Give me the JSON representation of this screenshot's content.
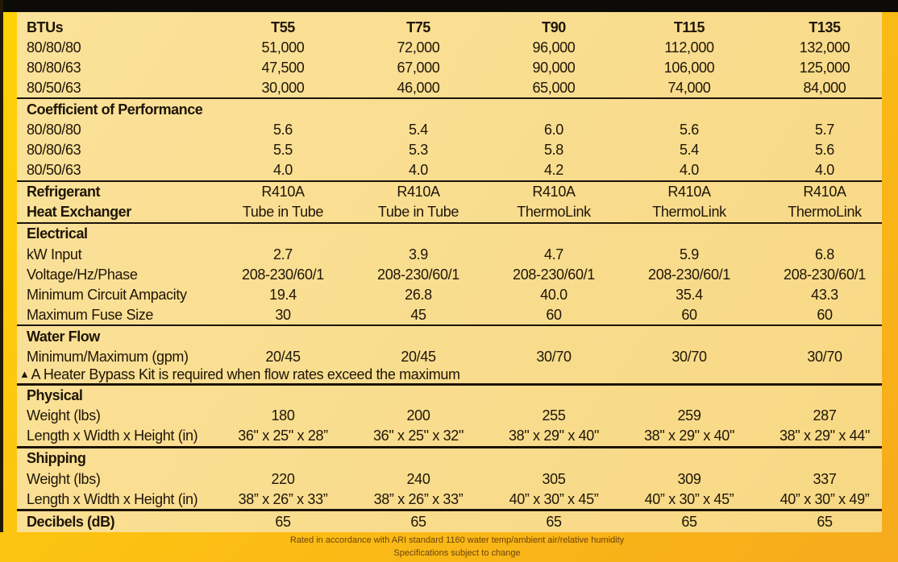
{
  "columns": [
    "T55",
    "T75",
    "T90",
    "T115",
    "T135"
  ],
  "table": {
    "rows": [
      {
        "type": "header",
        "label": "BTUs",
        "values": [
          "T55",
          "T75",
          "T90",
          "T115",
          "T135"
        ]
      },
      {
        "type": "data",
        "label": "80/80/80",
        "values": [
          "51,000",
          "72,000",
          "96,000",
          "112,000",
          "132,000"
        ]
      },
      {
        "type": "data",
        "label": "80/80/63",
        "values": [
          "47,500",
          "67,000",
          "90,000",
          "106,000",
          "125,000"
        ]
      },
      {
        "type": "data",
        "label": "80/50/63",
        "values": [
          "30,000",
          "46,000",
          "65,000",
          "74,000",
          "84,000"
        ]
      },
      {
        "type": "divider",
        "weight": 2
      },
      {
        "type": "section",
        "label": "Coefficient of Performance"
      },
      {
        "type": "data",
        "label": "80/80/80",
        "values": [
          "5.6",
          "5.4",
          "6.0",
          "5.6",
          "5.7"
        ]
      },
      {
        "type": "data",
        "label": "80/80/63",
        "values": [
          "5.5",
          "5.3",
          "5.8",
          "5.4",
          "5.6"
        ]
      },
      {
        "type": "data",
        "label": "80/50/63",
        "values": [
          "4.0",
          "4.0",
          "4.2",
          "4.0",
          "4.0"
        ]
      },
      {
        "type": "divider",
        "weight": 2
      },
      {
        "type": "boldlabel",
        "label": "Refrigerant",
        "values": [
          "R410A",
          "R410A",
          "R410A",
          "R410A",
          "R410A"
        ]
      },
      {
        "type": "boldlabel",
        "label": "Heat Exchanger",
        "values": [
          "Tube in Tube",
          "Tube in Tube",
          "ThermoLink",
          "ThermoLink",
          "ThermoLink"
        ]
      },
      {
        "type": "divider",
        "weight": 2
      },
      {
        "type": "section",
        "label": "Electrical"
      },
      {
        "type": "data",
        "label": "kW Input",
        "values": [
          "2.7",
          "3.9",
          "4.7",
          "5.9",
          "6.8"
        ]
      },
      {
        "type": "data",
        "label": "Voltage/Hz/Phase",
        "values": [
          "208-230/60/1",
          "208-230/60/1",
          "208-230/60/1",
          "208-230/60/1",
          "208-230/60/1"
        ]
      },
      {
        "type": "data",
        "label": "Minimum Circuit Ampacity",
        "values": [
          "19.4",
          "26.8",
          "40.0",
          "35.4",
          "43.3"
        ]
      },
      {
        "type": "data",
        "label": "Maximum Fuse Size",
        "values": [
          "30",
          "45",
          "60",
          "60",
          "60"
        ]
      },
      {
        "type": "divider",
        "weight": 2
      },
      {
        "type": "section",
        "label": "Water Flow"
      },
      {
        "type": "data",
        "label": "Minimum/Maximum (gpm)",
        "values": [
          "20/45",
          "20/45",
          "30/70",
          "30/70",
          "30/70"
        ]
      },
      {
        "type": "note",
        "symbol": "▲",
        "text": "A Heater Bypass Kit is required when flow rates exceed the maximum"
      },
      {
        "type": "divider",
        "weight": 3
      },
      {
        "type": "section",
        "label": "Physical"
      },
      {
        "type": "data",
        "label": "Weight (lbs)",
        "values": [
          "180",
          "200",
          "255",
          "259",
          "287"
        ]
      },
      {
        "type": "data",
        "label": "Length x Width x Height (in)",
        "values": [
          "36\" x 25\" x 28”",
          "36\" x 25\" x 32\"",
          "38\" x 29\" x 40\"",
          "38\" x 29\" x 40\"",
          "38\" x 29\" x 44\""
        ]
      },
      {
        "type": "divider",
        "weight": 3
      },
      {
        "type": "section",
        "label": "Shipping"
      },
      {
        "type": "data",
        "label": "Weight (lbs)",
        "values": [
          "220",
          "240",
          "305",
          "309",
          "337"
        ]
      },
      {
        "type": "data",
        "label": "Length x Width x Height (in)",
        "values": [
          "38” x 26” x 33”",
          "38” x 26” x 33”",
          "40” x 30” x 45”",
          "40” x 30” x 45”",
          "40” x 30” x 49”"
        ]
      },
      {
        "type": "divider",
        "weight": 3
      },
      {
        "type": "boldlabel",
        "label": "Decibels (dB)",
        "values": [
          "65",
          "65",
          "65",
          "65",
          "65"
        ]
      }
    ]
  },
  "footer": {
    "line1": "Rated in accordance with ARI standard 1160 water temp/ambient air/relative humidity",
    "line2": "Specifications subject to change"
  },
  "colors": {
    "background_gold_start": "#ffd205",
    "background_gold_end": "#f6aa1c",
    "sheet_background": "#f9dd90",
    "text": "#1f1608",
    "divider": "#1d140a",
    "footer_text": "#6b430e",
    "top_strip": "#0c0b07"
  }
}
